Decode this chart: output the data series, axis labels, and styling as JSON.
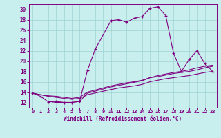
{
  "xlabel": "Windchill (Refroidissement éolien,°C)",
  "xlim": [
    -0.5,
    23.5
  ],
  "ylim": [
    11,
    31
  ],
  "xticks": [
    0,
    1,
    2,
    3,
    4,
    5,
    6,
    7,
    8,
    9,
    10,
    11,
    12,
    13,
    14,
    15,
    16,
    17,
    18,
    19,
    20,
    21,
    22,
    23
  ],
  "yticks": [
    12,
    14,
    16,
    18,
    20,
    22,
    24,
    26,
    28,
    30
  ],
  "line_color": "#800080",
  "bg_color": "#c8eeee",
  "grid_color": "#a0d0d0",
  "lines": [
    {
      "x": [
        0,
        1,
        2,
        3,
        4,
        5,
        6,
        7,
        8,
        10,
        11,
        12,
        13,
        14,
        15,
        16,
        17,
        18,
        19,
        20,
        21,
        22,
        23
      ],
      "y": [
        13.8,
        13.2,
        12.1,
        12.2,
        12.0,
        12.0,
        12.2,
        18.2,
        22.3,
        27.8,
        28.0,
        27.5,
        28.3,
        28.6,
        30.2,
        30.5,
        28.8,
        21.5,
        18.0,
        20.3,
        22.0,
        19.5,
        18.0
      ],
      "marker": "+"
    },
    {
      "x": [
        0,
        1,
        2,
        3,
        4,
        5,
        6,
        7,
        10,
        11,
        12,
        13,
        14,
        15,
        16,
        17,
        18,
        19,
        20,
        21,
        22,
        23
      ],
      "y": [
        13.8,
        13.5,
        13.2,
        13.0,
        12.8,
        12.6,
        12.8,
        13.5,
        14.5,
        14.8,
        15.0,
        15.2,
        15.5,
        16.0,
        16.3,
        16.6,
        16.8,
        17.0,
        17.2,
        17.5,
        17.8,
        18.0
      ],
      "marker": null
    },
    {
      "x": [
        0,
        1,
        2,
        3,
        4,
        5,
        6,
        7,
        10,
        11,
        12,
        13,
        14,
        15,
        16,
        17,
        18,
        19,
        20,
        21,
        22,
        23
      ],
      "y": [
        13.8,
        13.5,
        13.3,
        13.2,
        13.0,
        12.8,
        13.0,
        14.0,
        15.2,
        15.5,
        15.8,
        16.0,
        16.3,
        16.8,
        17.0,
        17.3,
        17.6,
        17.8,
        18.0,
        18.3,
        18.7,
        19.0
      ],
      "marker": null
    },
    {
      "x": [
        2,
        3,
        4,
        5,
        6,
        7,
        10,
        11,
        12,
        13,
        14,
        15,
        16,
        17,
        18,
        19,
        20,
        21,
        22,
        23
      ],
      "y": [
        12.2,
        12.0,
        12.0,
        12.0,
        12.2,
        13.8,
        15.0,
        15.3,
        15.6,
        15.9,
        16.2,
        16.8,
        17.2,
        17.5,
        17.8,
        18.0,
        18.3,
        18.7,
        19.0,
        19.2
      ],
      "marker": null
    }
  ]
}
